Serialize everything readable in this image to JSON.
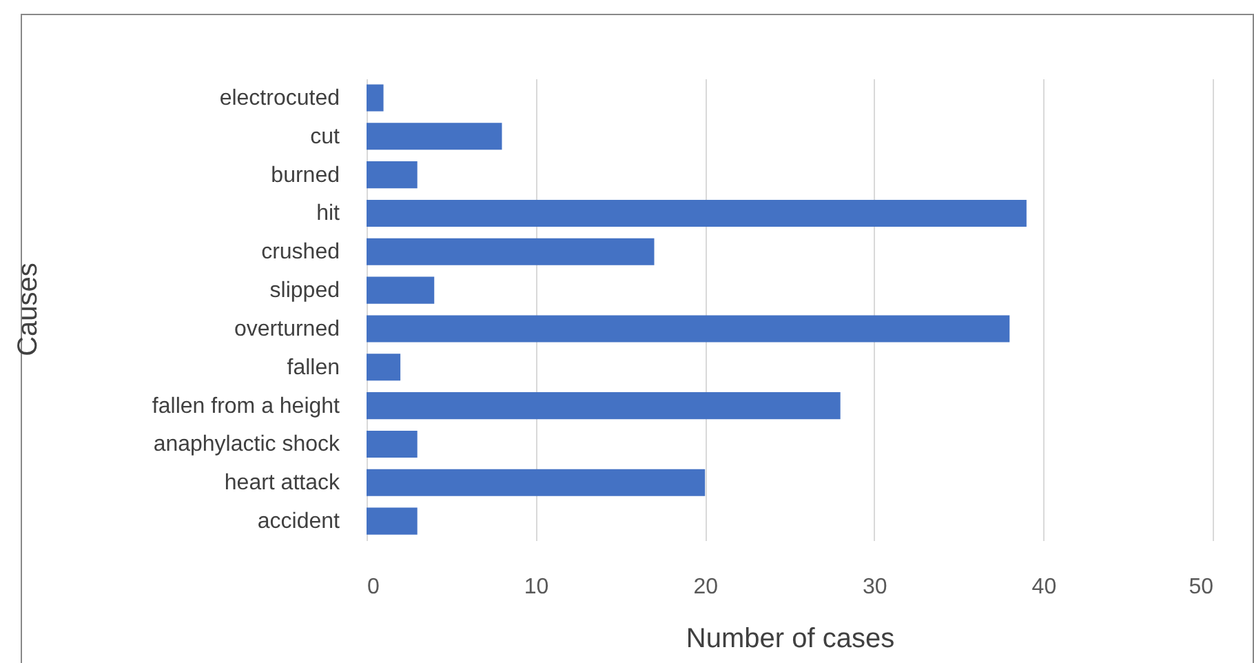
{
  "chart_data": {
    "type": "bar",
    "orientation": "horizontal",
    "xlabel": "Number of cases",
    "ylabel": "Causes",
    "categories": [
      "electrocuted",
      "cut",
      "burned",
      "hit",
      "crushed",
      "slipped",
      "overturned",
      "fallen",
      "fallen from a height",
      "anaphylactic shock",
      "heart attack",
      "accident"
    ],
    "values": [
      1,
      8,
      3,
      39,
      17,
      4,
      38,
      2,
      28,
      3,
      20,
      3
    ],
    "color": "#4472c4",
    "xlim": [
      0,
      50
    ],
    "xticks": [
      0,
      10,
      20,
      30,
      40,
      50
    ],
    "grid": "x"
  }
}
